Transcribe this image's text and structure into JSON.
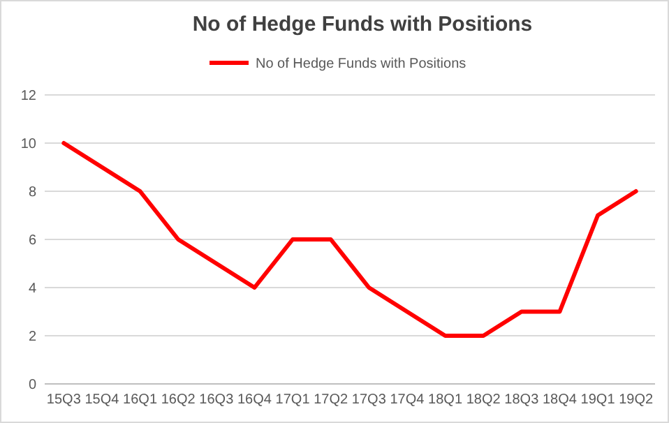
{
  "chart_data": {
    "type": "line",
    "title": "No of Hedge Funds with Positions",
    "categories": [
      "15Q3",
      "15Q4",
      "16Q1",
      "16Q2",
      "16Q3",
      "16Q4",
      "17Q1",
      "17Q2",
      "17Q3",
      "17Q4",
      "18Q1",
      "18Q2",
      "18Q3",
      "18Q4",
      "19Q1",
      "19Q2"
    ],
    "series": [
      {
        "name": "No of Hedge Funds with Positions",
        "color": "#ff0000",
        "values": [
          10,
          9,
          8,
          6,
          5,
          4,
          6,
          6,
          4,
          3,
          2,
          2,
          3,
          3,
          7,
          8
        ]
      }
    ],
    "ylim": [
      0,
      12
    ],
    "yticks": [
      0,
      2,
      4,
      6,
      8,
      10,
      12
    ],
    "grid": "y",
    "legend": "top",
    "marker": "none",
    "line_style": "solid"
  }
}
